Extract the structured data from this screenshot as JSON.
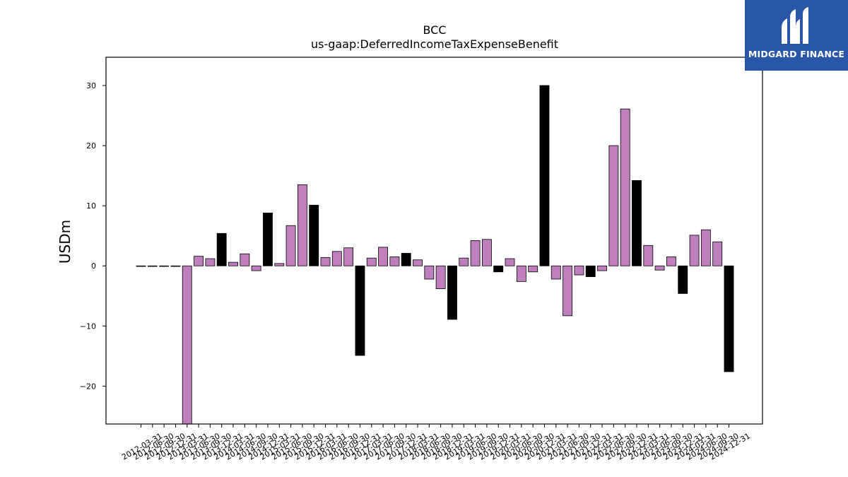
{
  "chart_data": {
    "type": "bar",
    "title": "BCC",
    "subtitle": "us-gaap:DeferredIncomeTaxExpenseBenefit",
    "ylabel": "USDm",
    "ylim": [
      -26.3,
      34.7
    ],
    "yticks": [
      -20,
      -10,
      0,
      10,
      20,
      30
    ],
    "categories": [
      "2012-03-31",
      "2012-06-30",
      "2012-09-30",
      "2012-12-31",
      "2013-03-31",
      "2013-06-30",
      "2013-09-30",
      "2013-12-31",
      "2014-03-31",
      "2014-06-30",
      "2014-09-30",
      "2014-12-31",
      "2015-03-31",
      "2015-06-30",
      "2015-09-30",
      "2015-12-31",
      "2016-03-31",
      "2016-06-30",
      "2016-09-30",
      "2016-12-31",
      "2017-03-31",
      "2017-06-30",
      "2017-09-30",
      "2017-12-31",
      "2018-03-31",
      "2018-06-30",
      "2018-09-30",
      "2018-12-31",
      "2019-03-31",
      "2019-06-30",
      "2019-09-30",
      "2019-12-31",
      "2020-03-31",
      "2020-06-30",
      "2020-09-30",
      "2020-12-31",
      "2021-03-31",
      "2021-06-30",
      "2021-09-30",
      "2021-12-31",
      "2022-03-31",
      "2022-06-30",
      "2022-09-30",
      "2022-12-31",
      "2023-03-31",
      "2023-06-30",
      "2023-09-30",
      "2023-12-31",
      "2024-03-31",
      "2024-06-30",
      "2024-09-30",
      "2024-12-31"
    ],
    "values": [
      0,
      0,
      0,
      0,
      -26.3,
      1.6,
      1.2,
      5.4,
      0.6,
      2.0,
      -0.8,
      8.8,
      0.4,
      6.7,
      13.5,
      10.1,
      1.4,
      2.4,
      3.0,
      -14.9,
      1.3,
      3.1,
      1.5,
      2.1,
      1.0,
      -2.2,
      -3.8,
      -8.9,
      1.3,
      4.2,
      4.4,
      -1.0,
      1.2,
      -2.6,
      -1.0,
      30.0,
      -2.2,
      -8.3,
      -1.5,
      -1.8,
      -0.8,
      20.0,
      26.1,
      14.2,
      3.4,
      -0.7,
      1.5,
      -4.6,
      5.1,
      6.0,
      4.0,
      -17.6
    ],
    "bar_colors": {
      "quarter": "#bf7fbf",
      "year_end": "#000000",
      "edge": "#000000"
    },
    "grid": false,
    "legend": "none"
  },
  "watermark": {
    "text": "MIDGARD FINANCE",
    "background": "#2a56a8"
  }
}
